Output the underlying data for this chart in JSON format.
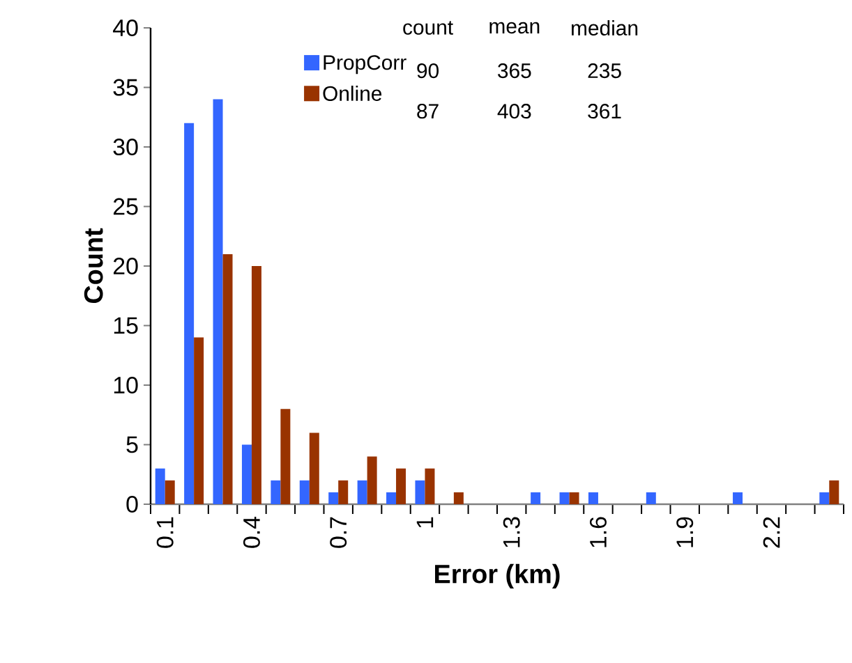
{
  "chart_data": {
    "type": "bar",
    "xlabel": "Error (km)",
    "ylabel": "Count",
    "categories": [
      "0.1",
      null,
      null,
      "0.4",
      null,
      null,
      "0.7",
      null,
      null,
      "1",
      null,
      null,
      "1.3",
      null,
      null,
      "1.6",
      null,
      null,
      "1.9",
      null,
      null,
      "2.2",
      null,
      null
    ],
    "series": [
      {
        "name": "PropCorr",
        "color": "#3366ff",
        "values": [
          3,
          32,
          34,
          5,
          2,
          2,
          1,
          2,
          1,
          2,
          0,
          0,
          0,
          1,
          1,
          1,
          0,
          1,
          0,
          0,
          1,
          0,
          0,
          1
        ]
      },
      {
        "name": "Online",
        "color": "#993300",
        "values": [
          2,
          14,
          21,
          20,
          8,
          6,
          2,
          4,
          3,
          3,
          1,
          0,
          0,
          0,
          1,
          0,
          0,
          0,
          0,
          0,
          0,
          0,
          0,
          2
        ]
      }
    ],
    "ylim": [
      0,
      40
    ],
    "yticks": [
      0,
      5,
      10,
      15,
      20,
      25,
      30,
      35,
      40
    ],
    "grid": false,
    "legend": "top",
    "annotations": [
      "count",
      "mean",
      "median",
      "90",
      "365",
      "235",
      "87",
      "403",
      "361"
    ]
  }
}
